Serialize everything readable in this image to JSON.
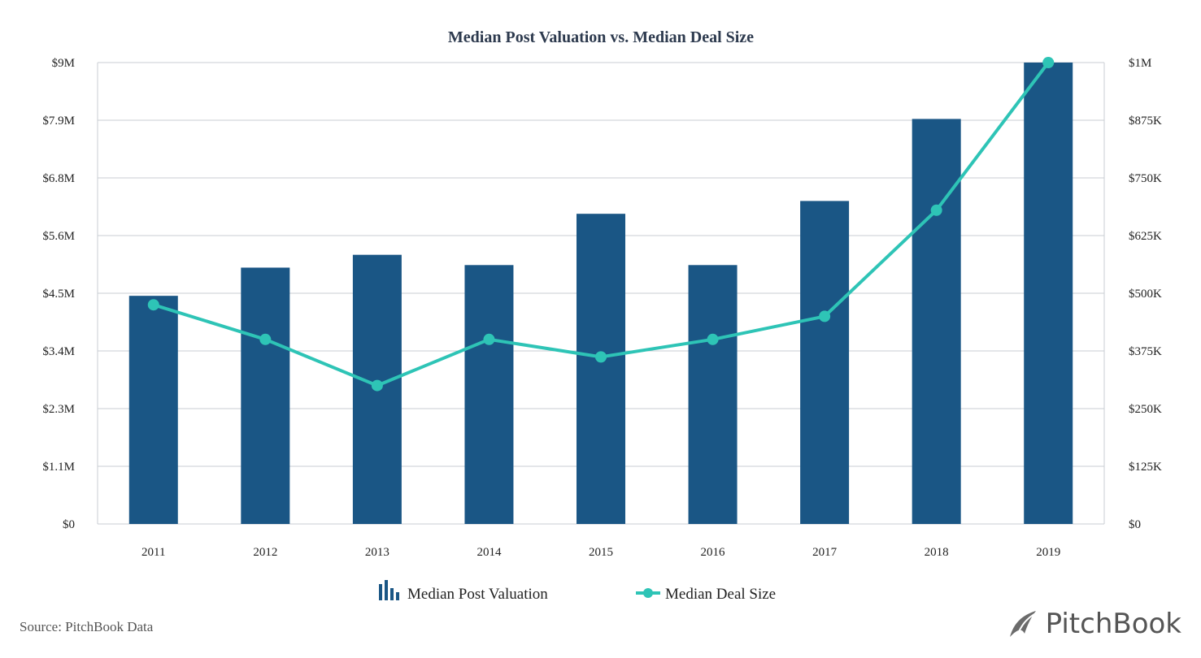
{
  "chart_data": {
    "type": "bar",
    "title": "Median Post Valuation vs. Median Deal Size",
    "categories": [
      "2011",
      "2012",
      "2013",
      "2014",
      "2015",
      "2016",
      "2017",
      "2018",
      "2019"
    ],
    "series": [
      {
        "name": "Median Post Valuation",
        "type": "bar",
        "axis": "left",
        "values": [
          4.45,
          5.0,
          5.25,
          5.05,
          6.05,
          5.05,
          6.3,
          7.9,
          9.0
        ],
        "color": "#1a5685"
      },
      {
        "name": "Median Deal Size",
        "type": "line",
        "axis": "right",
        "values": [
          475,
          400,
          300,
          400,
          362,
          400,
          450,
          680,
          1000
        ],
        "color": "#2ec4b6"
      }
    ],
    "yleft": {
      "ticks": [
        "$0",
        "$1.1M",
        "$2.3M",
        "$3.4M",
        "$4.5M",
        "$5.6M",
        "$6.8M",
        "$7.9M",
        "$9M"
      ],
      "range": [
        0,
        9
      ]
    },
    "yright": {
      "ticks": [
        "$0",
        "$125K",
        "$250K",
        "$375K",
        "$500K",
        "$625K",
        "$750K",
        "$875K",
        "$1M"
      ],
      "range": [
        0,
        1000
      ]
    },
    "grid": true,
    "legend": "bottom"
  },
  "footer": {
    "source": "Source: PitchBook Data",
    "brand": "PitchBook"
  }
}
